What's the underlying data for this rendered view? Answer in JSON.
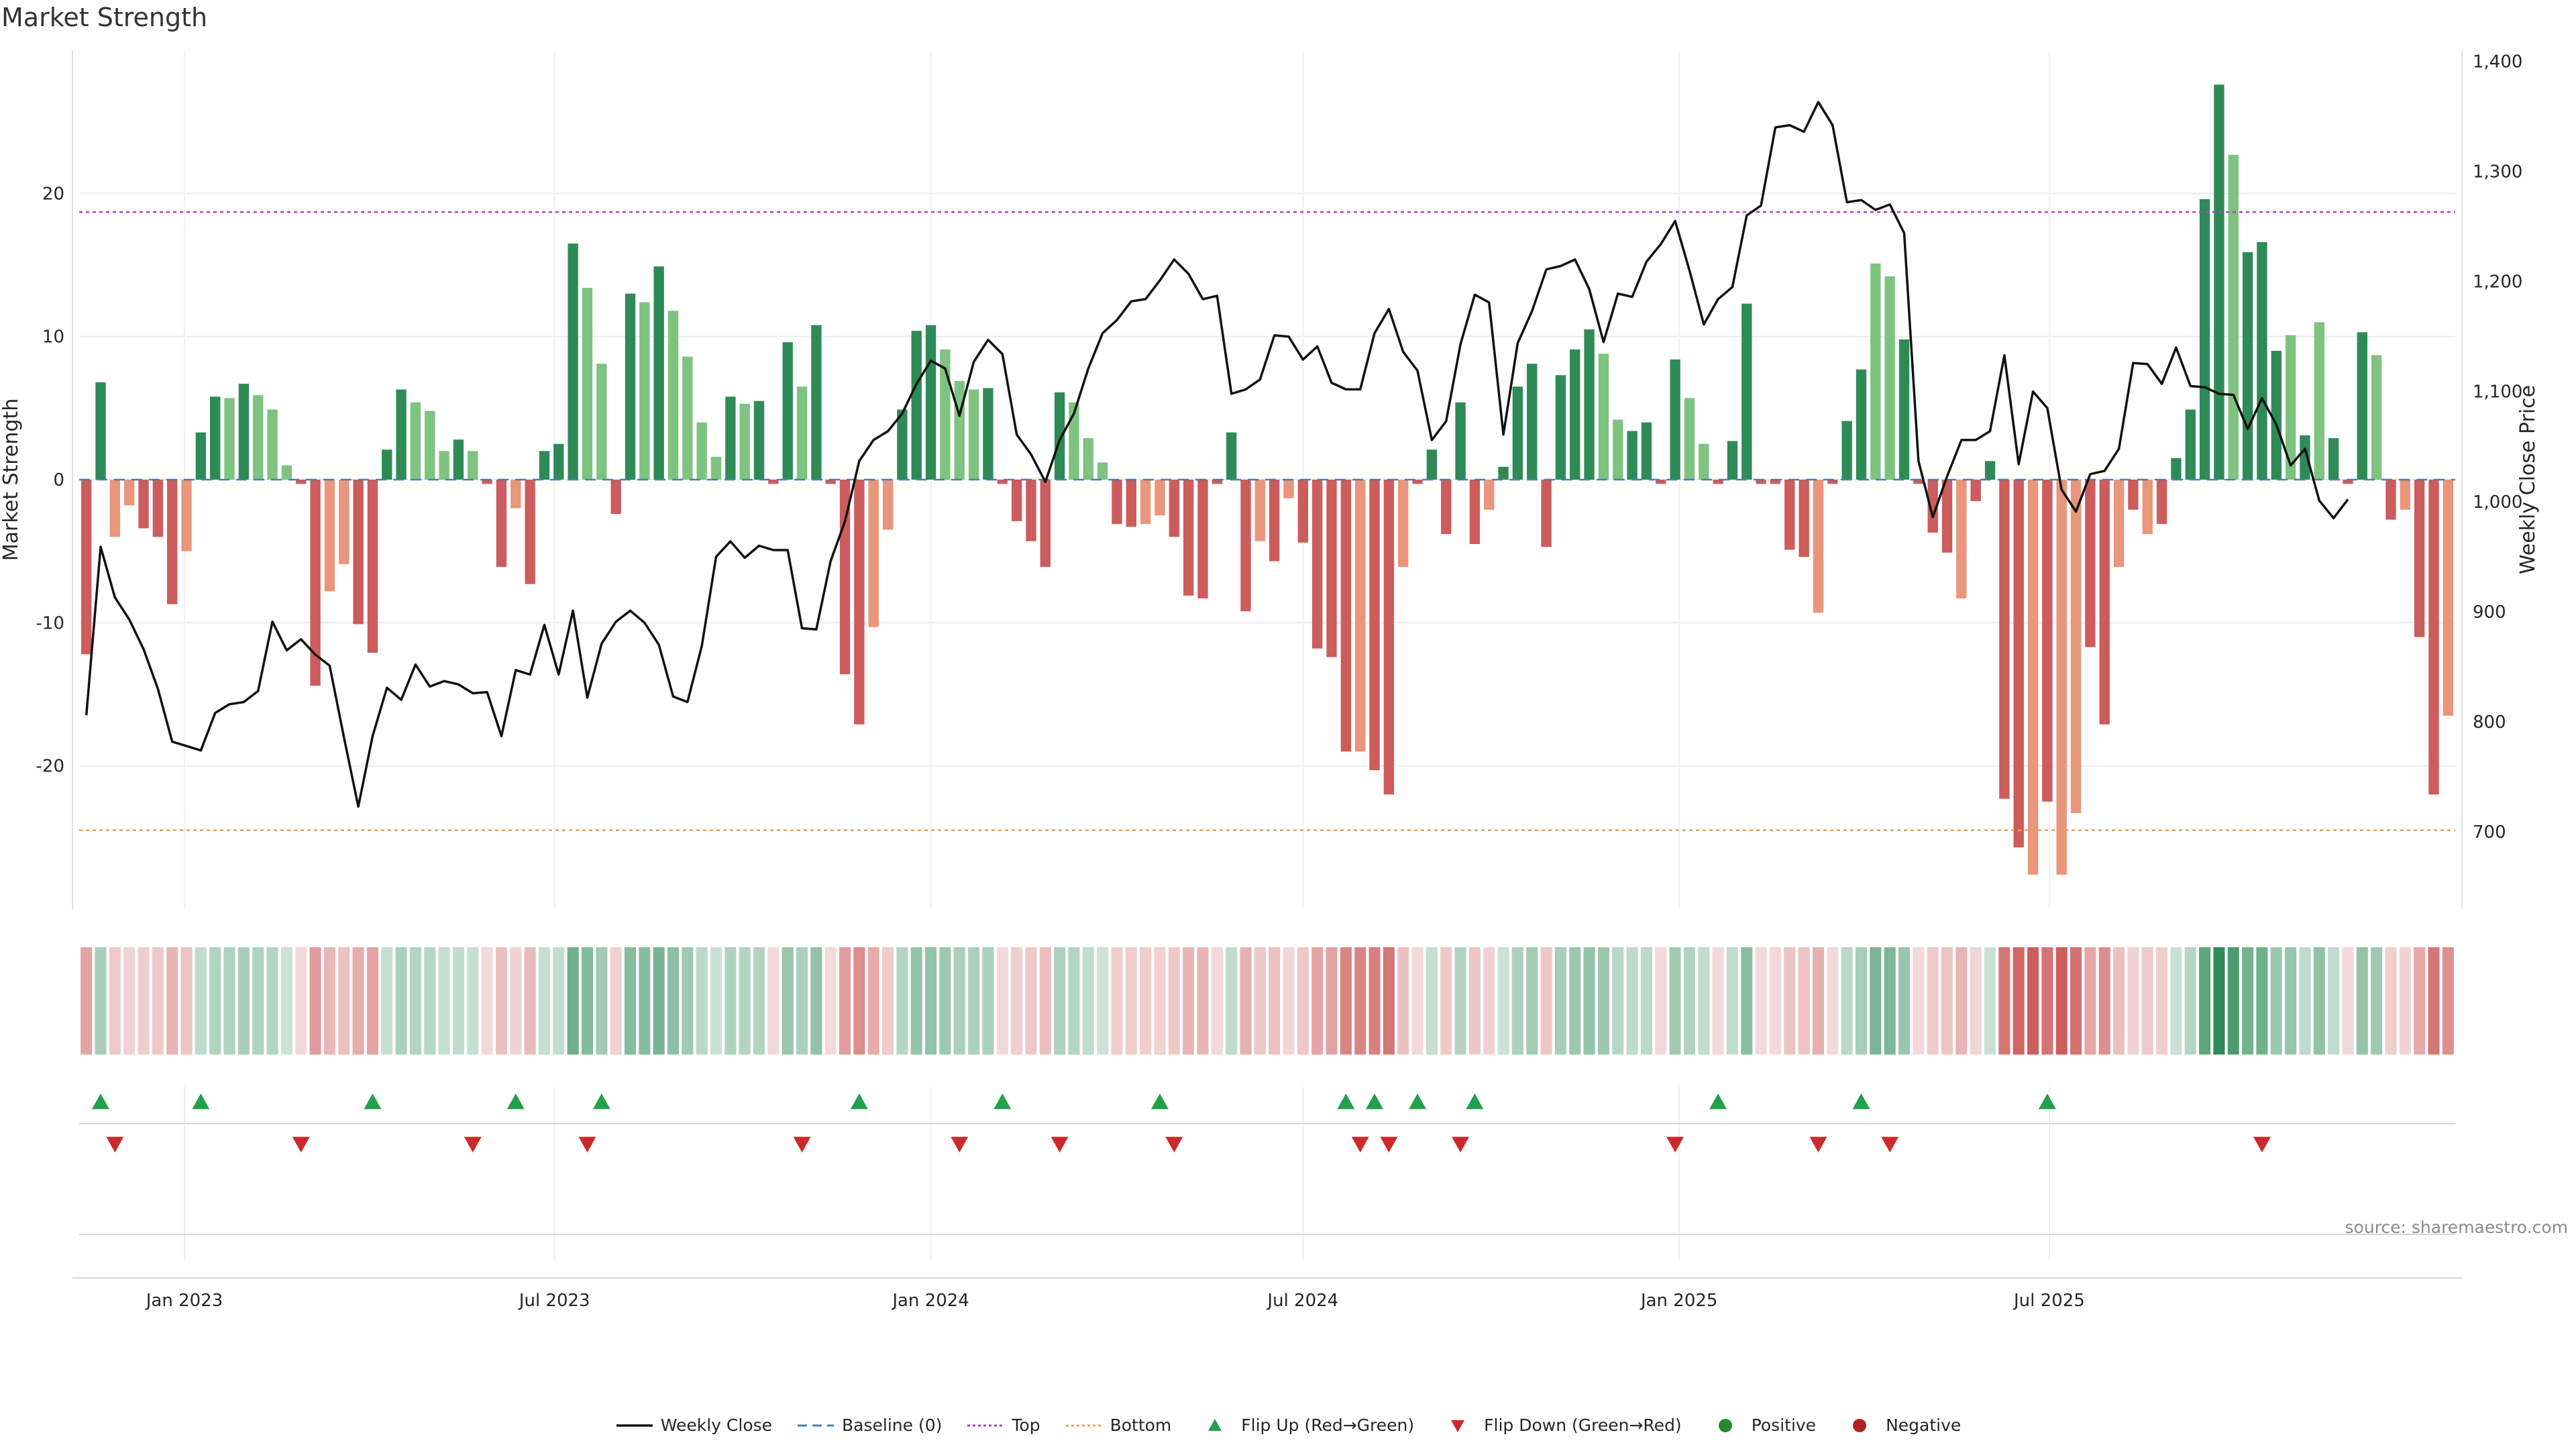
{
  "title": "Market Strength",
  "source": "source: sharemaestro.com",
  "colors": {
    "strong_green": "#2e8b57",
    "light_green": "#7fc380",
    "strong_red": "#cd5c5c",
    "light_red": "#e9967a",
    "price_line": "#111111",
    "top_line": "#b040c0",
    "bottom_line": "#e8a060",
    "baseline": "#4a7fb5",
    "flip_up": "#22a04a",
    "flip_down": "#cc2a2a",
    "positive": "#2a8a2a",
    "negative": "#b22222"
  },
  "legend": [
    {
      "label": "Weekly Close",
      "kind": "line",
      "color": "#111111"
    },
    {
      "label": "Baseline (0)",
      "kind": "dash",
      "color": "#4a7fb5"
    },
    {
      "label": "Top",
      "kind": "dot",
      "color": "#b040c0"
    },
    {
      "label": "Bottom",
      "kind": "dot",
      "color": "#e8a060"
    },
    {
      "label": "Flip Up (Red→Green)",
      "kind": "tri-up",
      "color": "#22a04a"
    },
    {
      "label": "Flip Down (Green→Red)",
      "kind": "tri-down",
      "color": "#cc2a2a"
    },
    {
      "label": "Positive",
      "kind": "dot-marker",
      "color": "#2a8a2a"
    },
    {
      "label": "Negative",
      "kind": "dot-marker",
      "color": "#b22222"
    }
  ],
  "chart_data": {
    "type": "bar",
    "title": "Market Strength",
    "x_axis": {
      "type": "date",
      "start": "2022-11-14",
      "step_days": 7,
      "ticks": [
        {
          "date": "2023-01-01",
          "label": "Jan 2023"
        },
        {
          "date": "2023-07-01",
          "label": "Jul 2023"
        },
        {
          "date": "2024-01-01",
          "label": "Jan 2024"
        },
        {
          "date": "2024-07-01",
          "label": "Jul 2024"
        },
        {
          "date": "2025-01-01",
          "label": "Jan 2025"
        },
        {
          "date": "2025-07-01",
          "label": "Jul 2025"
        }
      ]
    },
    "y_left": {
      "label": "Market Strength",
      "ylim": [
        -30,
        30
      ],
      "ticks": [
        -20,
        -10,
        0,
        10,
        20
      ]
    },
    "y_right": {
      "label": "Weekly Close Price",
      "ylim": [
        630,
        1410
      ],
      "ticks": [
        {
          "value": 700,
          "label": "700"
        },
        {
          "value": 800,
          "label": "800"
        },
        {
          "value": 900,
          "label": "900"
        },
        {
          "value": 1000,
          "label": "1,000"
        },
        {
          "value": 1100,
          "label": "1,100"
        },
        {
          "value": 1200,
          "label": "1,200"
        },
        {
          "value": 1300,
          "label": "1,300"
        },
        {
          "value": 1400,
          "label": "1,400"
        }
      ]
    },
    "top_level": 18.7,
    "bottom_level": -24.5,
    "series": [
      {
        "name": "Market Strength",
        "values": [
          -12.2,
          6.8,
          -4,
          -1.8,
          -3.4,
          -4,
          -8.7,
          -5,
          3.3,
          5.8,
          5.7,
          6.7,
          5.9,
          4.9,
          1.0,
          -0.3,
          -14.4,
          -7.8,
          -5.9,
          -10.1,
          -12.1,
          2.1,
          6.3,
          5.4,
          4.8,
          2.0,
          2.8,
          2.0,
          -0.3,
          -6.1,
          -2.0,
          -7.3,
          2.0,
          2.5,
          16.5,
          13.4,
          8.1,
          -2.4,
          13.0,
          12.4,
          14.9,
          11.8,
          8.6,
          4.0,
          1.6,
          5.8,
          5.3,
          5.5,
          -0.3,
          9.6,
          6.5,
          10.8,
          -0.3,
          -13.6,
          -17.1,
          -10.3,
          -3.5,
          4.9,
          10.4,
          10.8,
          9.1,
          6.9,
          6.3,
          6.4,
          -0.3,
          -2.9,
          -4.3,
          -6.1,
          6.1,
          5.4,
          2.9,
          1.2,
          -3.1,
          -3.3,
          -3.1,
          -2.5,
          -4.0,
          -8.1,
          -8.3,
          -0.3,
          3.3,
          -9.2,
          -4.3,
          -5.7,
          -1.3,
          -4.4,
          -11.8,
          -12.4,
          -19.0,
          -19.0,
          -20.3,
          -22.0,
          -6.1,
          -0.3,
          2.1,
          -3.8,
          5.4,
          -4.5,
          -2.1,
          0.9,
          6.5,
          8.1,
          -4.7,
          7.3,
          9.1,
          10.5,
          8.8,
          4.2,
          3.4,
          4.0,
          -0.3,
          8.4,
          5.7,
          2.5,
          -0.3,
          2.7,
          12.3,
          -0.3,
          -0.3,
          -4.9,
          -5.4,
          -9.3,
          -0.3,
          4.1,
          7.7,
          15.1,
          14.2,
          9.8,
          -0.3,
          -3.7,
          -5.1,
          -8.3,
          -1.5,
          1.3,
          -22.3,
          -25.7,
          -27.6,
          -22.5,
          -27.6,
          -23.3,
          -11.7,
          -17.1,
          -6.1,
          -2.1,
          -3.8,
          -3.1,
          1.5,
          4.9,
          19.6,
          27.6,
          22.7,
          15.9,
          16.6,
          9.0,
          10.1,
          3.1,
          11.0,
          2.9,
          -0.3,
          10.3,
          8.7,
          -2.8,
          -2.1,
          -11.0,
          -22.0,
          -16.5
        ],
        "shade": [
          "S",
          "S",
          "L",
          "L",
          "S",
          "S",
          "S",
          "L",
          "S",
          "S",
          "L",
          "S",
          "L",
          "L",
          "L",
          "S",
          "S",
          "L",
          "L",
          "S",
          "S",
          "S",
          "S",
          "L",
          "L",
          "L",
          "S",
          "L",
          "S",
          "S",
          "L",
          "S",
          "S",
          "S",
          "S",
          "L",
          "L",
          "S",
          "S",
          "L",
          "S",
          "L",
          "L",
          "L",
          "L",
          "S",
          "L",
          "S",
          "S",
          "S",
          "L",
          "S",
          "S",
          "S",
          "S",
          "L",
          "L",
          "S",
          "S",
          "S",
          "L",
          "L",
          "L",
          "S",
          "S",
          "S",
          "S",
          "S",
          "S",
          "L",
          "L",
          "L",
          "S",
          "S",
          "L",
          "L",
          "S",
          "S",
          "S",
          "S",
          "S",
          "S",
          "L",
          "S",
          "L",
          "S",
          "S",
          "S",
          "S",
          "L",
          "S",
          "S",
          "L",
          "S",
          "S",
          "S",
          "S",
          "S",
          "L",
          "S",
          "S",
          "S",
          "S",
          "S",
          "S",
          "S",
          "L",
          "L",
          "S",
          "S",
          "S",
          "S",
          "L",
          "L",
          "S",
          "S",
          "S",
          "S",
          "S",
          "S",
          "S",
          "L",
          "S",
          "S",
          "S",
          "L",
          "L",
          "S",
          "S",
          "S",
          "S",
          "L",
          "S",
          "S",
          "S",
          "S",
          "L",
          "S",
          "L",
          "L",
          "S",
          "S",
          "L",
          "S",
          "L",
          "S",
          "S",
          "S",
          "S",
          "S",
          "L",
          "S",
          "S",
          "S",
          "L",
          "S",
          "L",
          "S",
          "S",
          "S",
          "L",
          "S",
          "L",
          "S",
          "S",
          "L"
        ]
      },
      {
        "name": "Weekly Close",
        "values": [
          806,
          959,
          913,
          893,
          866,
          830,
          782,
          778,
          774,
          808,
          816,
          818,
          828,
          891,
          865,
          875,
          861,
          851,
          786,
          723,
          787,
          831,
          820,
          852,
          832,
          837,
          834,
          826,
          827,
          787,
          847,
          843,
          888,
          843,
          901,
          822,
          871,
          891,
          901,
          890,
          870,
          823,
          818,
          869,
          950,
          964,
          949,
          960,
          956,
          956,
          885,
          884,
          946,
          982,
          1037,
          1056,
          1064,
          1080,
          1107,
          1128,
          1121,
          1078,
          1127,
          1147,
          1134,
          1061,
          1043,
          1018,
          1056,
          1080,
          1121,
          1153,
          1165,
          1182,
          1184,
          1201,
          1220,
          1207,
          1184,
          1187,
          1098,
          1102,
          1111,
          1151,
          1150,
          1129,
          1141,
          1108,
          1102,
          1102,
          1153,
          1175,
          1136,
          1119,
          1056,
          1073,
          1143,
          1188,
          1181,
          1061,
          1144,
          1173,
          1211,
          1214,
          1220,
          1193,
          1145,
          1189,
          1186,
          1218,
          1234,
          1255,
          1210,
          1161,
          1184,
          1195,
          1260,
          1269,
          1340,
          1342,
          1336,
          1363,
          1342,
          1272,
          1274,
          1265,
          1270,
          1244,
          1037,
          986,
          1023,
          1056,
          1056,
          1064,
          1133,
          1034,
          1100,
          1085,
          1011,
          991,
          1025,
          1028,
          1048,
          1126,
          1125,
          1107,
          1140,
          1105,
          1104,
          1098,
          1097,
          1066,
          1094,
          1070,
          1033,
          1048,
          1001,
          985,
          1002
        ]
      }
    ],
    "flip_up_weeks": [
      1,
      8,
      20,
      30,
      36,
      54,
      64,
      75,
      88,
      90,
      93,
      97,
      114,
      124,
      137
    ],
    "flip_down_weeks": [
      2,
      15,
      27,
      35,
      50,
      61,
      68,
      76,
      89,
      91,
      96,
      111,
      121,
      126,
      152
    ]
  }
}
